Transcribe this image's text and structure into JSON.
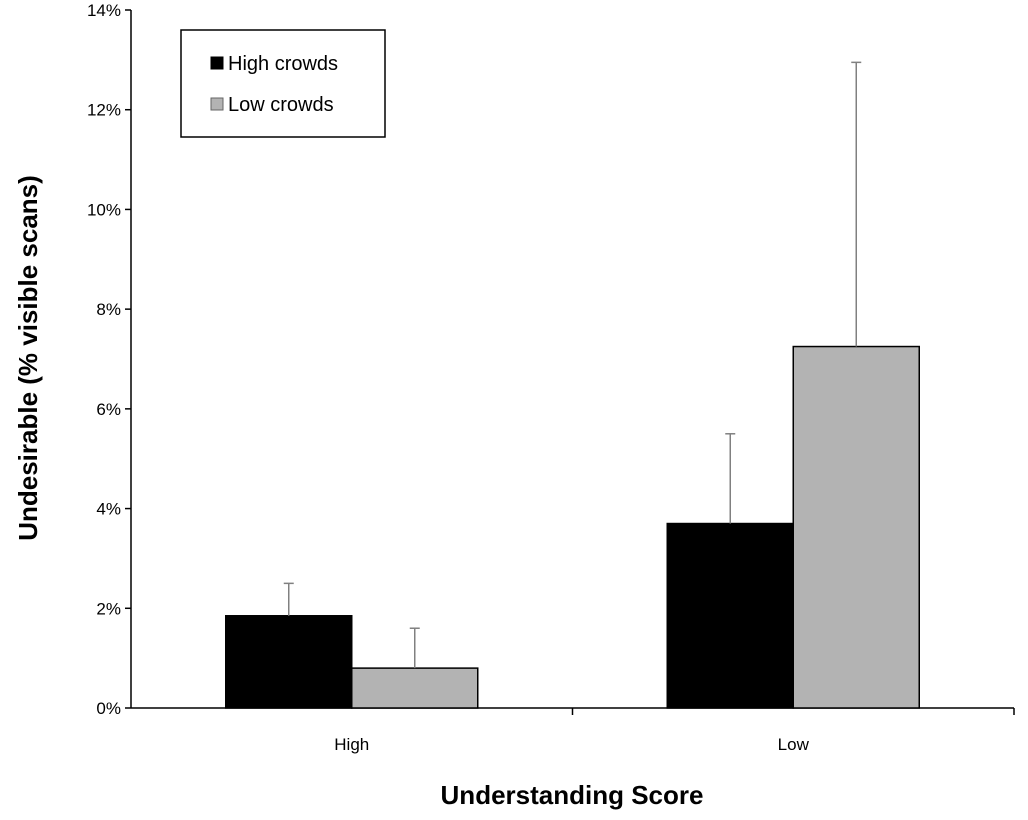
{
  "chart_data": {
    "type": "bar",
    "categories": [
      "High",
      "Low"
    ],
    "series": [
      {
        "name": "High crowds",
        "values": [
          1.85,
          3.7
        ],
        "error": [
          0.65,
          1.8
        ],
        "color": "#000000"
      },
      {
        "name": "Low crowds",
        "values": [
          0.8,
          7.25
        ],
        "error": [
          0.8,
          5.7
        ],
        "color": "#b3b3b3"
      }
    ],
    "title": "",
    "xlabel": "Understanding Score",
    "ylabel": "Undesirable (% visible scans)",
    "ylim": [
      0,
      14
    ],
    "yticks": [
      "0%",
      "2%",
      "4%",
      "6%",
      "8%",
      "10%",
      "12%",
      "14%"
    ],
    "ytick_values": [
      0,
      2,
      4,
      6,
      8,
      10,
      12,
      14
    ],
    "grid": false,
    "legend": "top-left",
    "error_bars": "upper"
  }
}
